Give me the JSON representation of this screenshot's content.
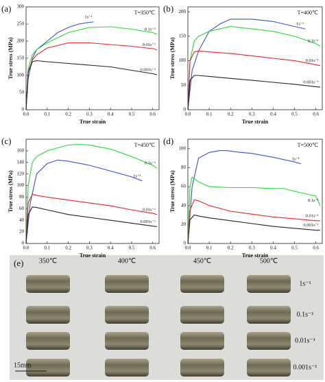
{
  "chart_data": [
    {
      "type": "line",
      "label": "(a)",
      "title": "T=350℃",
      "x_label": "True strain",
      "y_label": "True stress (MPa)",
      "xlim": [
        0,
        0.63
      ],
      "xticks": [
        {
          "value": 0,
          "label": "0.0"
        },
        0.1,
        0.2,
        0.3,
        0.4,
        0.5,
        0.6
      ],
      "ylim": [
        0,
        300
      ],
      "yticks": [
        0,
        50,
        100,
        150,
        200,
        250,
        300
      ],
      "series": [
        {
          "name": "1s⁻¹",
          "color": "#3b4fd8",
          "x": [
            0,
            0.01,
            0.03,
            0.05,
            0.1,
            0.15,
            0.2,
            0.25,
            0.3,
            0.32
          ],
          "values": [
            0,
            90,
            150,
            175,
            200,
            225,
            240,
            250,
            255,
            256
          ]
        },
        {
          "name": "0.1s⁻¹",
          "color": "#22dd33",
          "x": [
            0,
            0.01,
            0.03,
            0.05,
            0.1,
            0.2,
            0.3,
            0.4,
            0.5,
            0.6,
            0.62
          ],
          "values": [
            0,
            120,
            160,
            175,
            195,
            225,
            240,
            242,
            235,
            225,
            220
          ]
        },
        {
          "name": "0.01s⁻¹",
          "color": "#ee2222",
          "x": [
            0,
            0.01,
            0.03,
            0.05,
            0.1,
            0.2,
            0.3,
            0.4,
            0.5,
            0.6,
            0.62
          ],
          "values": [
            0,
            110,
            145,
            160,
            180,
            195,
            195,
            190,
            185,
            178,
            175
          ]
        },
        {
          "name": "0.001s⁻¹",
          "color": "#222222",
          "x": [
            0,
            0.01,
            0.03,
            0.05,
            0.1,
            0.2,
            0.3,
            0.4,
            0.5,
            0.6,
            0.62
          ],
          "values": [
            0,
            110,
            140,
            143,
            140,
            135,
            130,
            125,
            115,
            105,
            102
          ]
        }
      ]
    },
    {
      "type": "line",
      "label": "(b)",
      "title": "T=400℃",
      "x_label": "True strain",
      "y_label": "True stress (MPa)",
      "xlim": [
        0,
        0.63
      ],
      "xticks": [
        {
          "value": 0,
          "label": "0.0"
        },
        0.1,
        0.2,
        0.3,
        0.4,
        0.5,
        0.6
      ],
      "ylim": [
        0,
        210
      ],
      "yticks": [
        0,
        50,
        100,
        150,
        200
      ],
      "series": [
        {
          "name": "1s⁻¹",
          "color": "#3b4fd8",
          "x": [
            0,
            0.02,
            0.05,
            0.1,
            0.15,
            0.2,
            0.3,
            0.4,
            0.5,
            0.55
          ],
          "values": [
            0,
            80,
            120,
            160,
            175,
            185,
            185,
            180,
            170,
            165
          ]
        },
        {
          "name": "0.1s⁻¹",
          "color": "#22dd33",
          "x": [
            0,
            0.01,
            0.03,
            0.05,
            0.1,
            0.2,
            0.3,
            0.4,
            0.5,
            0.6,
            0.62
          ],
          "values": [
            0,
            100,
            140,
            150,
            160,
            170,
            165,
            160,
            150,
            135,
            130
          ]
        },
        {
          "name": "0.01s⁻¹",
          "color": "#ee2222",
          "x": [
            0,
            0.01,
            0.03,
            0.05,
            0.1,
            0.2,
            0.3,
            0.4,
            0.5,
            0.6,
            0.62
          ],
          "values": [
            0,
            100,
            118,
            120,
            118,
            115,
            110,
            105,
            100,
            92,
            90
          ]
        },
        {
          "name": "0.001s⁻¹",
          "color": "#222222",
          "x": [
            0,
            0.01,
            0.03,
            0.05,
            0.1,
            0.2,
            0.3,
            0.4,
            0.5,
            0.6,
            0.62
          ],
          "values": [
            0,
            60,
            70,
            70,
            68,
            64,
            60,
            56,
            52,
            47,
            46
          ]
        }
      ]
    },
    {
      "type": "line",
      "label": "(c)",
      "title": "T=450℃",
      "x_label": "True strain",
      "y_label": "True stress (MPa)",
      "xlim": [
        0,
        0.63
      ],
      "xticks": [
        {
          "value": 0,
          "label": "0.0"
        },
        0.1,
        0.2,
        0.3,
        0.4,
        0.5,
        0.6
      ],
      "ylim": [
        0,
        180
      ],
      "yticks": [
        0,
        20,
        40,
        60,
        80,
        100,
        120,
        140,
        160
      ],
      "series": [
        {
          "name": "0.1s⁻¹",
          "color": "#22dd33",
          "x": [
            0,
            0.01,
            0.03,
            0.05,
            0.1,
            0.2,
            0.25,
            0.3,
            0.4,
            0.5,
            0.6,
            0.62
          ],
          "values": [
            0,
            100,
            140,
            150,
            160,
            170,
            171,
            170,
            163,
            150,
            135,
            130
          ]
        },
        {
          "name": "1s⁻¹",
          "color": "#3b4fd8",
          "x": [
            0,
            0.02,
            0.05,
            0.1,
            0.15,
            0.2,
            0.3,
            0.4,
            0.5,
            0.55
          ],
          "values": [
            0,
            70,
            120,
            138,
            144,
            142,
            135,
            125,
            115,
            108
          ]
        },
        {
          "name": "0.01s⁻¹",
          "color": "#ee2222",
          "x": [
            0,
            0.01,
            0.03,
            0.05,
            0.1,
            0.2,
            0.3,
            0.4,
            0.5,
            0.6,
            0.62
          ],
          "values": [
            0,
            70,
            85,
            83,
            80,
            75,
            70,
            65,
            58,
            52,
            50
          ]
        },
        {
          "name": "0.001s⁻¹",
          "color": "#222222",
          "x": [
            0,
            0.01,
            0.03,
            0.05,
            0.1,
            0.2,
            0.3,
            0.4,
            0.5,
            0.6,
            0.62
          ],
          "values": [
            0,
            50,
            63,
            62,
            58,
            50,
            45,
            40,
            35,
            30,
            29
          ]
        }
      ]
    },
    {
      "type": "line",
      "label": "(d)",
      "title": "T=500℃",
      "x_label": "True strain",
      "y_label": "True stress (MPa)",
      "xlim": [
        0,
        0.63
      ],
      "xticks": [
        {
          "value": 0,
          "label": "0.0"
        },
        0.1,
        0.2,
        0.3,
        0.4,
        0.5,
        0.6
      ],
      "ylim": [
        0,
        110
      ],
      "yticks": [
        0,
        20,
        40,
        60,
        80,
        100
      ],
      "series": [
        {
          "name": "1s⁻¹",
          "color": "#3b4fd8",
          "x": [
            0,
            0.02,
            0.05,
            0.1,
            0.15,
            0.18,
            0.25,
            0.3,
            0.4,
            0.5,
            0.53
          ],
          "values": [
            0,
            60,
            90,
            96,
            98,
            98,
            96,
            95,
            91,
            86,
            84
          ]
        },
        {
          "name": "0.1s⁻¹",
          "color": "#22dd33",
          "x": [
            0,
            0.01,
            0.02,
            0.05,
            0.1,
            0.2,
            0.3,
            0.4,
            0.45,
            0.5,
            0.6,
            0.62
          ],
          "values": [
            0,
            60,
            70,
            65,
            60,
            59,
            59,
            58,
            58,
            55,
            50,
            40
          ]
        },
        {
          "name": "0.01s⁻¹",
          "color": "#ee2222",
          "x": [
            0,
            0.01,
            0.03,
            0.05,
            0.1,
            0.2,
            0.3,
            0.4,
            0.5,
            0.6,
            0.62
          ],
          "values": [
            0,
            35,
            46,
            45,
            40,
            34,
            31,
            28,
            26,
            24,
            24
          ]
        },
        {
          "name": "0.001s⁻¹",
          "color": "#222222",
          "x": [
            0,
            0.01,
            0.03,
            0.05,
            0.1,
            0.2,
            0.3,
            0.4,
            0.5,
            0.6,
            0.62
          ],
          "values": [
            0,
            25,
            30,
            29,
            27,
            24,
            21,
            18,
            16,
            14,
            14
          ]
        }
      ]
    }
  ],
  "photo_panel": {
    "label": "(e)",
    "temperatures": [
      "350℃",
      "400℃",
      "450℃",
      "500℃"
    ],
    "rates": [
      "1s⁻¹",
      "0.1s⁻¹",
      "0.01s⁻¹",
      "0.001s⁻¹"
    ],
    "scale_label": "15mm"
  }
}
